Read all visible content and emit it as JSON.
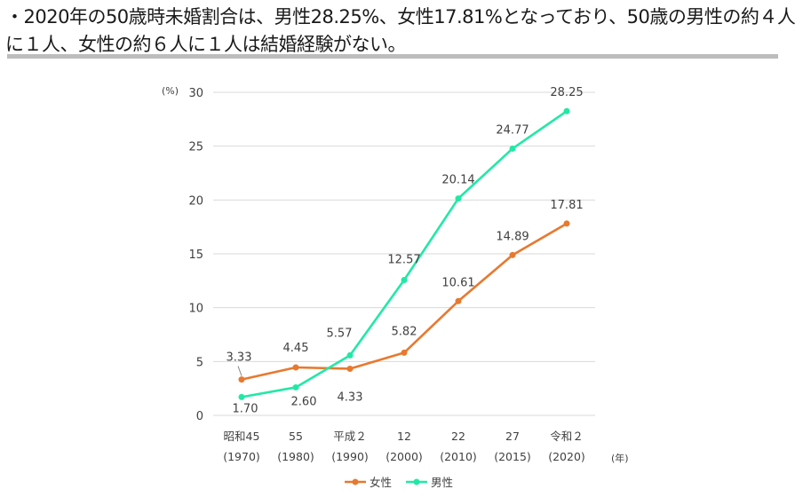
{
  "headline": {
    "line1": "・2020年の50歳時未婚割合は、男性28.25%、女性17.81%となっており、50歳の男性の約４人",
    "line2": "に１人、女性の約６人に１人は結婚経験がない。"
  },
  "colors": {
    "female": "#e8792f",
    "male": "#22e8a6",
    "grid": "#d9d9d9",
    "text": "#404040"
  },
  "chart_data": {
    "type": "line",
    "y_unit": "(%)",
    "x_unit": "(年)",
    "ylim": [
      0,
      30
    ],
    "yticks": [
      "0",
      "5",
      "10",
      "15",
      "20",
      "25",
      "30"
    ],
    "grid": true,
    "legend_position": "bottom-center",
    "categories": [
      {
        "label": "昭和45",
        "year": "(1970)"
      },
      {
        "label": "55",
        "year": "(1980)"
      },
      {
        "label": "平成２",
        "year": "(1990)"
      },
      {
        "label": "12",
        "year": "(2000)"
      },
      {
        "label": "22",
        "year": "(2010)"
      },
      {
        "label": "27",
        "year": "(2015)"
      },
      {
        "label": "令和２",
        "year": "(2020)"
      }
    ],
    "series": [
      {
        "name": "女性",
        "values": [
          3.33,
          4.45,
          4.33,
          5.82,
          10.61,
          14.89,
          17.81
        ],
        "labels": [
          "3.33",
          "4.45",
          "4.33",
          "5.82",
          "10.61",
          "14.89",
          "17.81"
        ]
      },
      {
        "name": "男性",
        "values": [
          1.7,
          2.6,
          5.57,
          12.57,
          20.14,
          24.77,
          28.25
        ],
        "labels": [
          "1.70",
          "2.60",
          "5.57",
          "12.57",
          "20.14",
          "24.77",
          "28.25"
        ]
      }
    ]
  }
}
